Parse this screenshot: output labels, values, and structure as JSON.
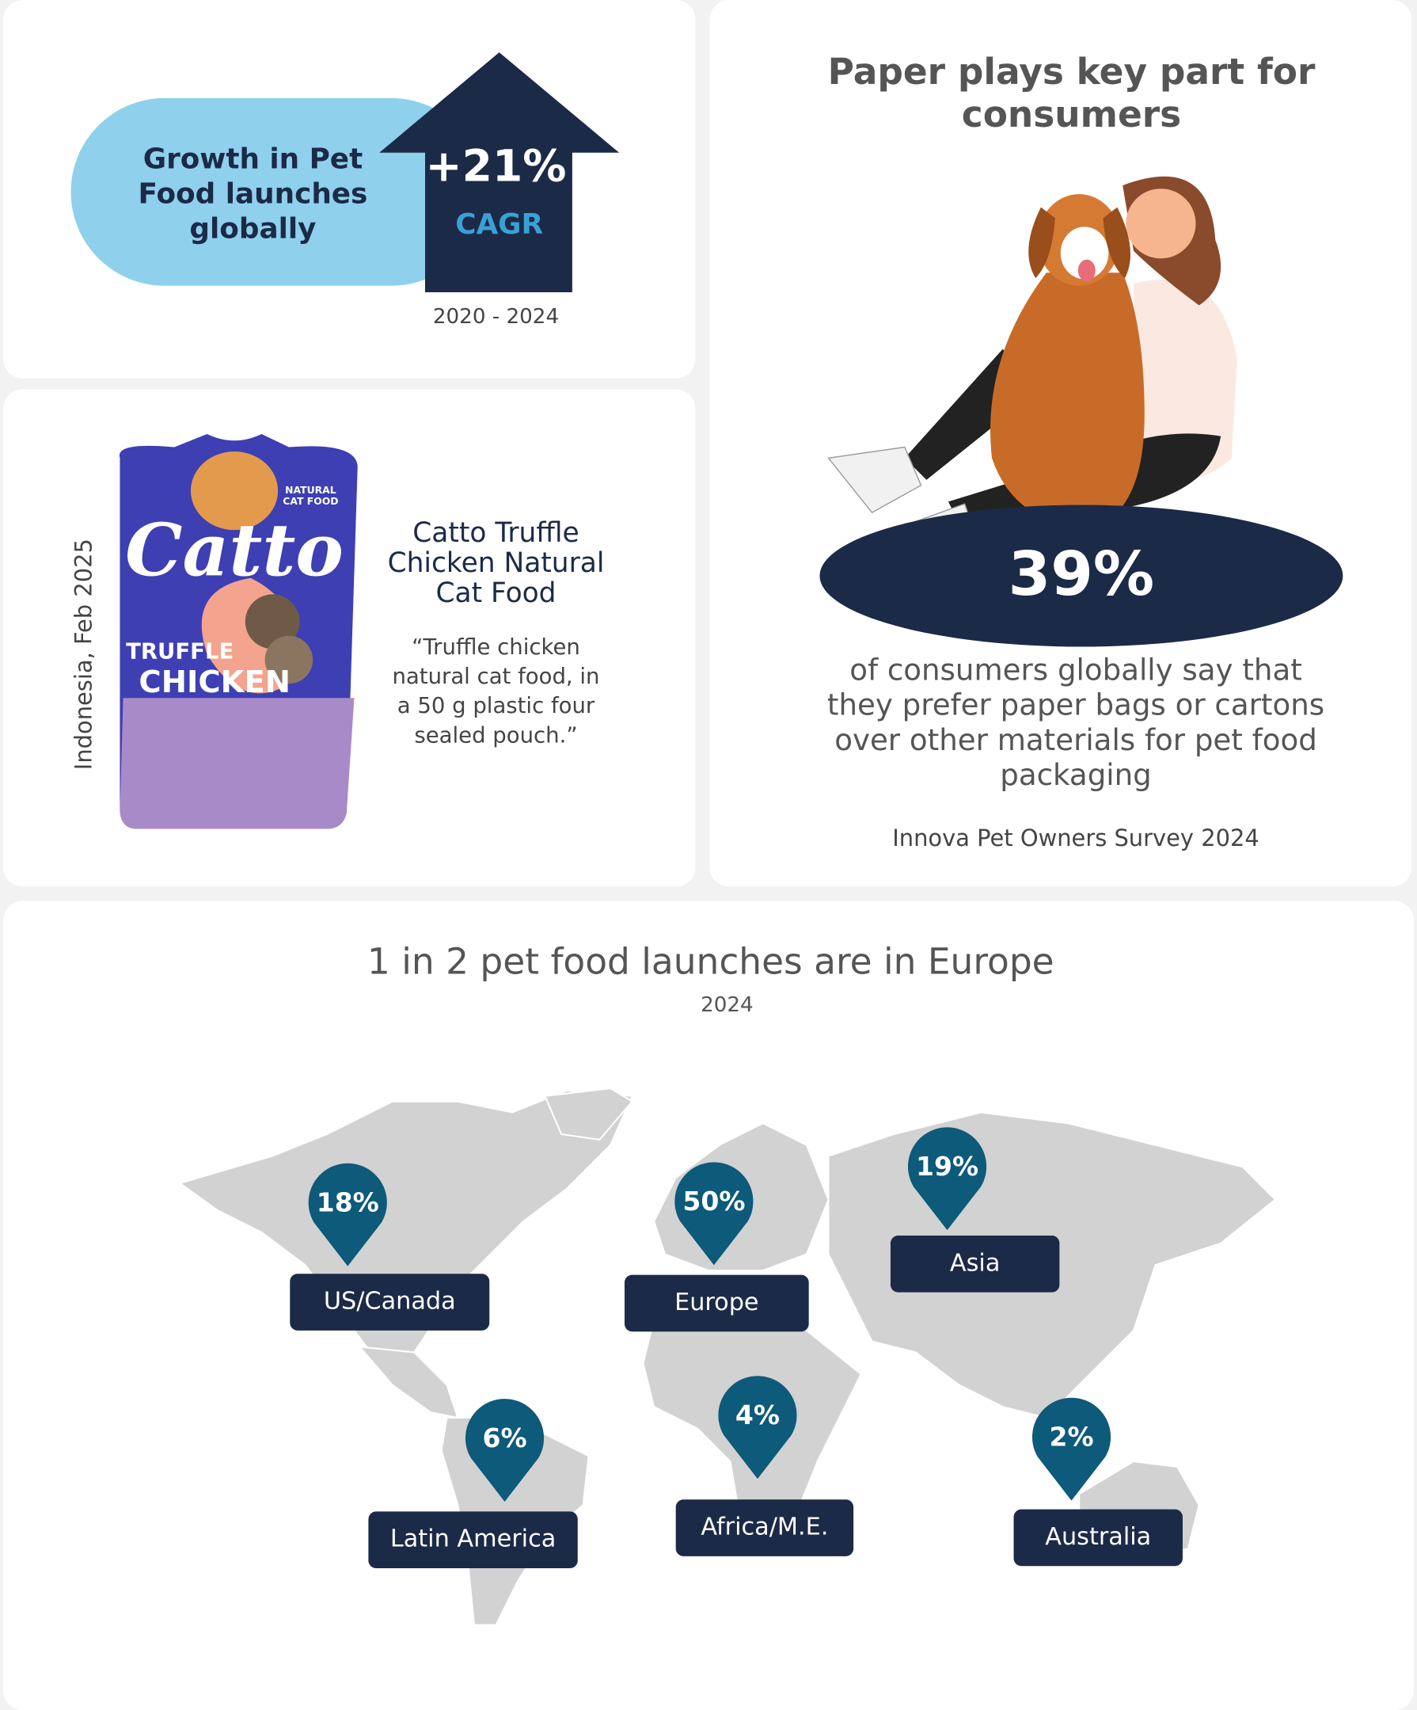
{
  "growth": {
    "label_lines": [
      "Growth in Pet",
      "Food launches",
      "globally"
    ],
    "value": "+21%",
    "unit": "CAGR",
    "period": "2020 - 2024"
  },
  "product": {
    "location": "Indonesia, Feb 2025",
    "pouch_texts": [
      "NATURAL",
      "CAT FOOD",
      "Catto",
      "TRUFFLE",
      "CHICKEN"
    ],
    "name_lines": [
      "Catto Truffle",
      "Chicken Natural",
      "Cat Food"
    ],
    "description_lines": [
      "“Truffle chicken",
      "natural cat food, in",
      "a 50 g plastic four",
      "sealed pouch.”"
    ]
  },
  "paper": {
    "title_lines": [
      "Paper plays key part for",
      "consumers"
    ],
    "value": "39%",
    "text_lines": [
      "of consumers globally say that",
      "they prefer paper bags or cartons",
      "over other materials for pet food",
      "packaging"
    ],
    "source": "Innova Pet Owners Survey 2024"
  },
  "map": {
    "title": "1 in 2 pet food launches are in Europe",
    "subtitle": "2024",
    "regions": [
      {
        "name": "US/Canada",
        "share": "18%"
      },
      {
        "name": "Europe",
        "share": "50%"
      },
      {
        "name": "Asia",
        "share": "19%"
      },
      {
        "name": "Latin America",
        "share": "6%"
      },
      {
        "name": "Africa/M.E.",
        "share": "4%"
      },
      {
        "name": "Australia",
        "share": "2%"
      }
    ]
  }
}
